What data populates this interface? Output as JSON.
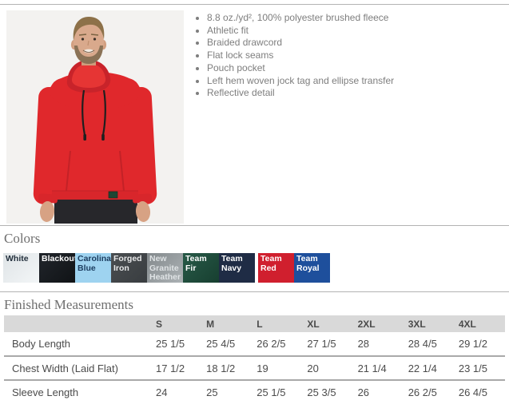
{
  "product": {
    "features": [
      "8.8 oz./yd², 100% polyester brushed fleece",
      "Athletic fit",
      "Braided drawcord",
      "Flat lock seams",
      "Pouch pocket",
      "Left hem woven jock tag and ellipse transfer",
      "Reflective detail"
    ]
  },
  "colors_section": {
    "title": "Colors",
    "swatches": [
      {
        "name": "White",
        "bg": "linear-gradient(135deg,#dfe4e7,#f3f6f7)",
        "fg": "#23303d"
      },
      {
        "name": "Blackout",
        "bg": "linear-gradient(135deg,#21252b,#101316)",
        "fg": "#ffffff"
      },
      {
        "name": "Carolina Blue",
        "bg": "#9ed3f0",
        "fg": "#1b3c5f"
      },
      {
        "name": "Forged Iron",
        "bg": "linear-gradient(135deg,#4a4e51,#393d40)",
        "fg": "#e8e9ea"
      },
      {
        "name": "New Granite Heather",
        "bg": "linear-gradient(135deg,#83898c,#acb2b5)",
        "fg": "#dfe3e5"
      },
      {
        "name": "Team Fir",
        "bg": "linear-gradient(135deg,#285a48,#173f30)",
        "fg": "#ffffff"
      },
      {
        "name": "Team Navy",
        "bg": "#1f2c45",
        "fg": "#ffffff"
      },
      {
        "name": "Team Red",
        "bg": "#d01f2e",
        "fg": "#ffffff",
        "gap_before": true
      },
      {
        "name": "Team Royal",
        "bg": "#1e4f9c",
        "fg": "#ffffff"
      }
    ]
  },
  "measurements": {
    "title": "Finished Measurements",
    "columns": [
      "",
      "S",
      "M",
      "L",
      "XL",
      "2XL",
      "3XL",
      "4XL"
    ],
    "rows": [
      {
        "label": "Body Length",
        "values": [
          "25 1/5",
          "25 4/5",
          "26 2/5",
          "27 1/5",
          "28",
          "28 4/5",
          "29 1/2"
        ]
      },
      {
        "label": "Chest Width (Laid Flat)",
        "values": [
          "17 1/2",
          "18 1/2",
          "19",
          "20",
          "21 1/4",
          "22 1/4",
          "23 1/5"
        ]
      },
      {
        "label": "Sleeve Length",
        "values": [
          "24",
          "25",
          "25 1/5",
          "25 3/5",
          "26",
          "26 2/5",
          "26 4/5"
        ]
      }
    ]
  }
}
